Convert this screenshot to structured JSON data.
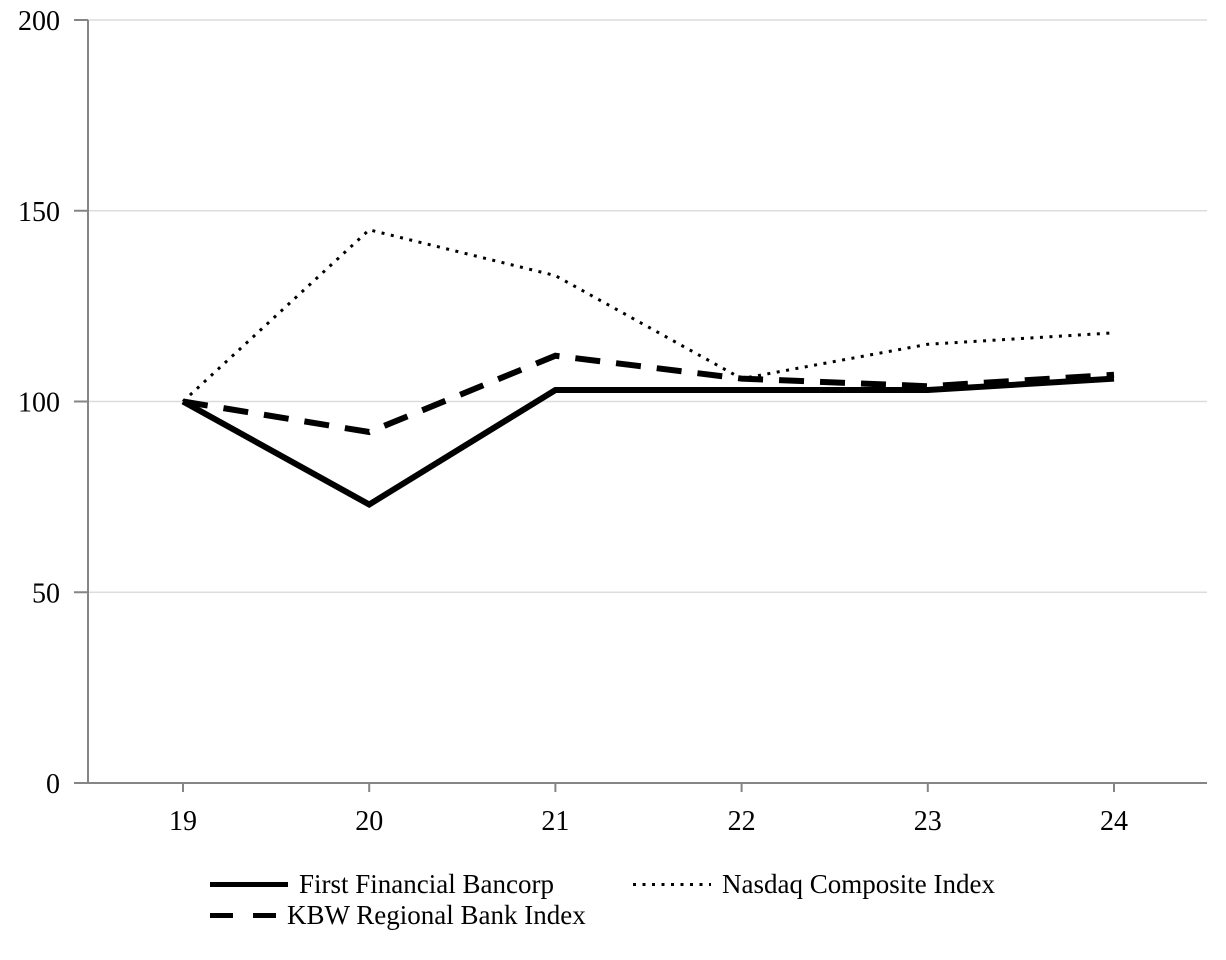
{
  "chart_data": {
    "type": "line",
    "title": "",
    "xlabel": "",
    "ylabel": "",
    "x_tick_labels": [
      "19",
      "20",
      "21",
      "22",
      "23",
      "24"
    ],
    "y_ticks": [
      0,
      50,
      100,
      150,
      200
    ],
    "ylim": [
      0,
      200
    ],
    "grid": "horizontal",
    "legend_position": "bottom",
    "series": [
      {
        "name": "First Financial Bancorp",
        "style": "solid",
        "values": [
          100,
          73,
          103,
          103,
          103,
          106
        ]
      },
      {
        "name": "KBW Regional Bank Index",
        "style": "dashed",
        "values": [
          100,
          92,
          112,
          106,
          104,
          107
        ]
      },
      {
        "name": "Nasdaq Composite Index",
        "style": "dotted",
        "values": [
          100,
          145,
          133,
          106,
          115,
          118
        ]
      }
    ]
  },
  "legend": {
    "items": [
      {
        "label": "First Financial Bancorp",
        "style": "solid"
      },
      {
        "label": "KBW Regional Bank Index",
        "style": "dashed"
      },
      {
        "label": "Nasdaq Composite Index",
        "style": "dotted"
      }
    ]
  },
  "colors": {
    "line": "#000000",
    "axis": "#858585",
    "gridline": "#dcdcdc",
    "background": "#ffffff"
  }
}
